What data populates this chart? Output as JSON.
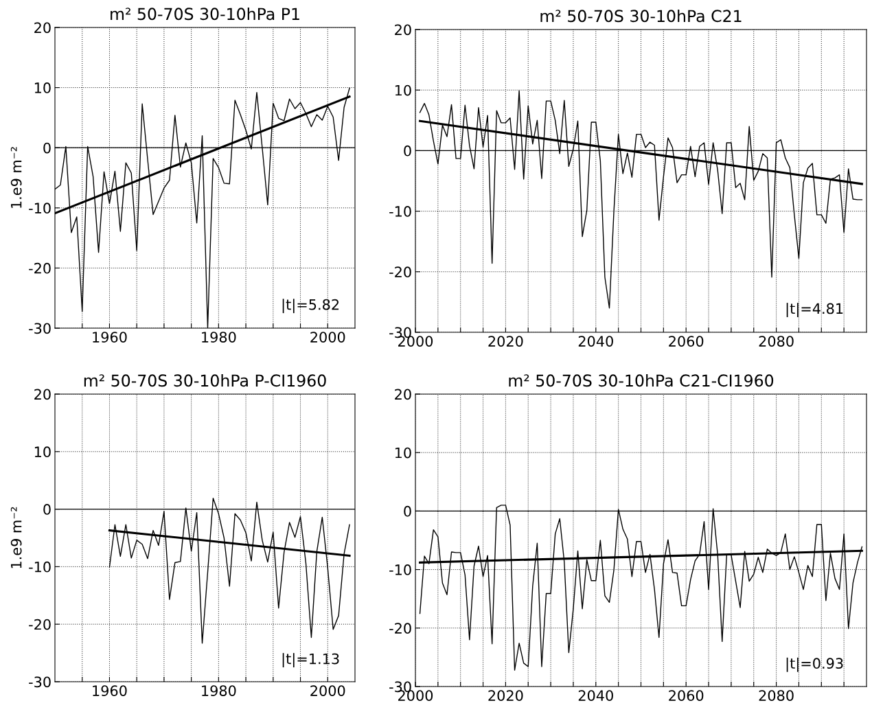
{
  "chart_data": [
    {
      "type": "line",
      "title": "m² 50-70S 30-10hPa P1",
      "ylabel": "1.e9 m⁻²",
      "xlim": [
        1950,
        2005
      ],
      "ylim": [
        -30,
        20
      ],
      "xticks": [
        {
          "value": 1955,
          "label": null
        },
        1960,
        {
          "value": 1965,
          "label": null
        },
        {
          "value": 1970,
          "label": null
        },
        {
          "value": 1975,
          "label": null
        },
        1980,
        {
          "value": 1985,
          "label": null
        },
        {
          "value": 1990,
          "label": null
        },
        {
          "value": 1995,
          "label": null
        },
        2000
      ],
      "yticks": [
        -30,
        -20,
        -10,
        0,
        10,
        20
      ],
      "grid": true,
      "ref_lines": [
        {
          "axis": "y",
          "value": 0
        }
      ],
      "annotations": [
        "|t|=5.82"
      ],
      "series": [
        {
          "color": "#000000",
          "x": [
            1950,
            1951,
            1952,
            1953,
            1954,
            1955,
            1956,
            1957,
            1958,
            1959,
            1960,
            1961,
            1962,
            1963,
            1964,
            1965,
            1966,
            1967,
            1968,
            1969,
            1970,
            1971,
            1972,
            1973,
            1974,
            1975,
            1976,
            1977,
            1978,
            1979,
            1980,
            1981,
            1982,
            1983,
            1984,
            1985,
            1986,
            1987,
            1988,
            1989,
            1990,
            1991,
            1992,
            1993,
            1994,
            1995,
            1996,
            1997,
            1998,
            1999,
            2000,
            2001,
            2002,
            2003,
            2004
          ],
          "values": [
            -6.9,
            -6.2,
            0.2,
            -14.1,
            -11.5,
            -27.2,
            0.2,
            -4.8,
            -17.4,
            -4.0,
            -9.3,
            -3.9,
            -13.9,
            -2.5,
            -4.2,
            -17.1,
            7.3,
            -2.0,
            -11.1,
            -8.9,
            -6.7,
            -5.4,
            5.4,
            -3.2,
            0.8,
            -2.5,
            -12.5,
            2.0,
            -30.0,
            -1.8,
            -3.3,
            -5.9,
            -6.0,
            7.9,
            5.5,
            2.9,
            -0.2,
            9.2,
            0.0,
            -9.5,
            7.4,
            4.9,
            4.5,
            8.1,
            6.5,
            7.5,
            5.7,
            3.5,
            5.5,
            4.6,
            6.9,
            5.1,
            -2.1,
            6.7,
            9.9
          ]
        },
        {
          "type": "line",
          "color": "#000000",
          "x": [
            1950,
            2004
          ],
          "values": [
            -10.9,
            8.5
          ]
        }
      ]
    },
    {
      "type": "line",
      "title": "m² 50-70S 30-10hPa C21",
      "xlim": [
        2000,
        2100
      ],
      "ylim": [
        -30,
        20
      ],
      "xticks": [
        2000,
        {
          "value": 2005,
          "label": null
        },
        {
          "value": 2010,
          "label": null
        },
        {
          "value": 2015,
          "label": null
        },
        2020,
        {
          "value": 2025,
          "label": null
        },
        {
          "value": 2030,
          "label": null
        },
        {
          "value": 2035,
          "label": null
        },
        2040,
        {
          "value": 2045,
          "label": null
        },
        {
          "value": 2050,
          "label": null
        },
        {
          "value": 2055,
          "label": null
        },
        2060,
        {
          "value": 2065,
          "label": null
        },
        {
          "value": 2070,
          "label": null
        },
        {
          "value": 2075,
          "label": null
        },
        2080,
        {
          "value": 2085,
          "label": null
        },
        {
          "value": 2090,
          "label": null
        },
        {
          "value": 2095,
          "label": null
        }
      ],
      "yticks": [
        -30,
        -20,
        -10,
        0,
        10,
        20
      ],
      "grid": true,
      "ref_lines": [
        {
          "axis": "y",
          "value": 0
        }
      ],
      "annotations": [
        "|t|=4.81"
      ],
      "series": [
        {
          "color": "#000000",
          "x": [
            2001,
            2002,
            2003,
            2004,
            2005,
            2006,
            2007,
            2008,
            2009,
            2010,
            2011,
            2012,
            2013,
            2014,
            2015,
            2016,
            2017,
            2018,
            2019,
            2020,
            2021,
            2022,
            2023,
            2024,
            2025,
            2026,
            2027,
            2028,
            2029,
            2030,
            2031,
            2032,
            2033,
            2034,
            2035,
            2036,
            2037,
            2038,
            2039,
            2040,
            2041,
            2042,
            2043,
            2044,
            2045,
            2046,
            2047,
            2048,
            2049,
            2050,
            2051,
            2052,
            2053,
            2054,
            2055,
            2056,
            2057,
            2058,
            2059,
            2060,
            2061,
            2062,
            2063,
            2064,
            2065,
            2066,
            2067,
            2068,
            2069,
            2070,
            2071,
            2072,
            2073,
            2074,
            2075,
            2076,
            2077,
            2078,
            2079,
            2080,
            2081,
            2082,
            2083,
            2084,
            2085,
            2086,
            2087,
            2088,
            2089,
            2090,
            2091,
            2092,
            2093,
            2094,
            2095,
            2096,
            2097,
            2098,
            2099
          ],
          "values": [
            6.3,
            7.8,
            5.9,
            1.6,
            -2.2,
            4.2,
            2.3,
            7.6,
            -1.3,
            -1.3,
            7.5,
            0.8,
            -3.0,
            7.1,
            0.6,
            5.8,
            -18.6,
            6.6,
            4.6,
            4.6,
            5.4,
            -3.1,
            9.9,
            -4.7,
            7.4,
            1.1,
            5.0,
            -4.6,
            8.2,
            8.2,
            5.0,
            -0.5,
            8.3,
            -2.6,
            0.3,
            4.9,
            -14.2,
            -9.9,
            4.7,
            4.7,
            -1.7,
            -20.9,
            -26.0,
            -10.0,
            2.7,
            -3.8,
            -0.4,
            -4.4,
            2.7,
            2.7,
            0.5,
            1.4,
            0.9,
            -11.5,
            -4.3,
            2.1,
            0.5,
            -5.3,
            -4.0,
            -4.0,
            0.7,
            -4.3,
            0.7,
            1.3,
            -5.6,
            1.3,
            -3.2,
            -10.4,
            1.3,
            1.3,
            -6.1,
            -5.4,
            -8.1,
            4.0,
            -4.9,
            -3.4,
            -0.5,
            -1.2,
            -20.9,
            1.3,
            1.8,
            -1.2,
            -2.8,
            -10.6,
            -17.8,
            -5.3,
            -2.9,
            -2.1,
            -10.6,
            -10.6,
            -12.0,
            -4.7,
            -4.5,
            -4.0,
            -13.5,
            -3.0,
            -8.0,
            -8.1,
            -8.1
          ]
        },
        {
          "type": "line",
          "color": "#000000",
          "x": [
            2001,
            2099
          ],
          "values": [
            4.9,
            -5.5
          ]
        }
      ]
    },
    {
      "type": "line",
      "title": "m² 50-70S 30-10hPa P-CI1960",
      "ylabel": "1.e9 m⁻²",
      "xlim": [
        1950,
        2005
      ],
      "ylim": [
        -30,
        20
      ],
      "xticks": [
        {
          "value": 1955,
          "label": null
        },
        1960,
        {
          "value": 1965,
          "label": null
        },
        {
          "value": 1970,
          "label": null
        },
        {
          "value": 1975,
          "label": null
        },
        1980,
        {
          "value": 1985,
          "label": null
        },
        {
          "value": 1990,
          "label": null
        },
        {
          "value": 1995,
          "label": null
        },
        2000
      ],
      "yticks": [
        -30,
        -20,
        -10,
        0,
        10,
        20
      ],
      "grid": true,
      "ref_lines": [
        {
          "axis": "y",
          "value": 0
        }
      ],
      "annotations": [
        "|t|=1.13"
      ],
      "series": [
        {
          "color": "#000000",
          "x": [
            1960,
            1961,
            1962,
            1963,
            1964,
            1965,
            1966,
            1967,
            1968,
            1969,
            1970,
            1971,
            1972,
            1973,
            1974,
            1975,
            1976,
            1977,
            1978,
            1979,
            1980,
            1981,
            1982,
            1983,
            1984,
            1985,
            1986,
            1987,
            1988,
            1989,
            1990,
            1991,
            1992,
            1993,
            1994,
            1995,
            1996,
            1997,
            1998,
            1999,
            2000,
            2001,
            2002,
            2003,
            2004
          ],
          "values": [
            -10.1,
            -2.7,
            -8.2,
            -2.7,
            -8.5,
            -5.4,
            -6.1,
            -8.6,
            -3.7,
            -6.3,
            -0.4,
            -15.7,
            -9.3,
            -9.1,
            0.2,
            -7.3,
            -0.6,
            -23.3,
            -11.0,
            1.9,
            -0.8,
            -5.0,
            -13.4,
            -0.8,
            -1.9,
            -4.1,
            -9.0,
            1.2,
            -5.4,
            -9.2,
            -4.0,
            -17.2,
            -7.5,
            -2.3,
            -4.9,
            -1.3,
            -9.4,
            -22.3,
            -7.4,
            -1.4,
            -10.2,
            -20.9,
            -18.5,
            -7.8,
            -2.7
          ]
        },
        {
          "type": "line",
          "color": "#000000",
          "x": [
            1960,
            2004
          ],
          "values": [
            -3.7,
            -8.1
          ]
        }
      ]
    },
    {
      "type": "line",
      "title": "m² 50-70S 30-10hPa C21-CI1960",
      "xlim": [
        2000,
        2100
      ],
      "ylim": [
        -30,
        20
      ],
      "xticks": [
        2000,
        {
          "value": 2005,
          "label": null
        },
        {
          "value": 2010,
          "label": null
        },
        {
          "value": 2015,
          "label": null
        },
        2020,
        {
          "value": 2025,
          "label": null
        },
        {
          "value": 2030,
          "label": null
        },
        {
          "value": 2035,
          "label": null
        },
        2040,
        {
          "value": 2045,
          "label": null
        },
        {
          "value": 2050,
          "label": null
        },
        {
          "value": 2055,
          "label": null
        },
        2060,
        {
          "value": 2065,
          "label": null
        },
        {
          "value": 2070,
          "label": null
        },
        {
          "value": 2075,
          "label": null
        },
        2080,
        {
          "value": 2085,
          "label": null
        },
        {
          "value": 2090,
          "label": null
        },
        {
          "value": 2095,
          "label": null
        }
      ],
      "yticks": [
        -30,
        -20,
        -10,
        0,
        10,
        20
      ],
      "grid": true,
      "ref_lines": [
        {
          "axis": "y",
          "value": 0
        }
      ],
      "annotations": [
        "|t|=0.93"
      ],
      "series": [
        {
          "color": "#000000",
          "x": [
            2001,
            2002,
            2003,
            2004,
            2005,
            2006,
            2007,
            2008,
            2009,
            2010,
            2011,
            2012,
            2013,
            2014,
            2015,
            2016,
            2017,
            2018,
            2019,
            2020,
            2021,
            2022,
            2023,
            2024,
            2025,
            2026,
            2027,
            2028,
            2029,
            2030,
            2031,
            2032,
            2033,
            2034,
            2035,
            2036,
            2037,
            2038,
            2039,
            2040,
            2041,
            2042,
            2043,
            2044,
            2045,
            2046,
            2047,
            2048,
            2049,
            2050,
            2051,
            2052,
            2053,
            2054,
            2055,
            2056,
            2057,
            2058,
            2059,
            2060,
            2061,
            2062,
            2063,
            2064,
            2065,
            2066,
            2067,
            2068,
            2069,
            2070,
            2071,
            2072,
            2073,
            2074,
            2075,
            2076,
            2077,
            2078,
            2079,
            2080,
            2081,
            2082,
            2083,
            2084,
            2085,
            2086,
            2087,
            2088,
            2089,
            2090,
            2091,
            2092,
            2093,
            2094,
            2095,
            2096,
            2097,
            2098,
            2099
          ],
          "values": [
            -17.5,
            -7.7,
            -9.0,
            -3.2,
            -4.4,
            -12.3,
            -14.3,
            -7.0,
            -7.1,
            -7.1,
            -10.9,
            -22.0,
            -9.4,
            -6.0,
            -11.2,
            -7.6,
            -22.7,
            0.6,
            1.0,
            1.0,
            -2.4,
            -27.2,
            -22.6,
            -26.0,
            -26.6,
            -12.8,
            -5.5,
            -26.6,
            -14.1,
            -14.1,
            -3.9,
            -1.3,
            -8.7,
            -24.2,
            -16.7,
            -6.8,
            -16.7,
            -8.3,
            -11.9,
            -11.9,
            -5.0,
            -14.5,
            -15.6,
            -10.1,
            0.3,
            -3.1,
            -4.8,
            -11.2,
            -5.2,
            -5.2,
            -10.5,
            -7.4,
            -13.4,
            -21.6,
            -9.0,
            -4.9,
            -10.5,
            -10.6,
            -16.2,
            -16.2,
            -11.7,
            -8.5,
            -7.4,
            -1.8,
            -13.4,
            0.4,
            -7.4,
            -22.3,
            -7.5,
            -7.5,
            -12.0,
            -16.5,
            -6.9,
            -12.0,
            -10.8,
            -7.9,
            -10.5,
            -6.5,
            -7.2,
            -7.6,
            -7.1,
            -3.9,
            -10.0,
            -7.8,
            -10.5,
            -13.4,
            -9.3,
            -11.2,
            -2.3,
            -2.3,
            -15.3,
            -7.2,
            -11.5,
            -13.4,
            -3.9,
            -20.1,
            -12.3,
            -8.8,
            -6.1
          ]
        },
        {
          "type": "line",
          "color": "#000000",
          "x": [
            2001,
            2099
          ],
          "values": [
            -8.8,
            -6.8
          ]
        }
      ]
    }
  ]
}
